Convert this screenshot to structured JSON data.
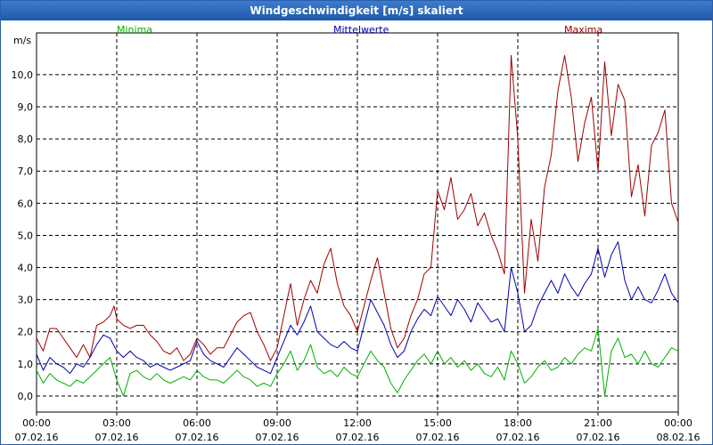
{
  "window": {
    "title": "Windgeschwindigkeit [m/s] skaliert"
  },
  "colors": {
    "min": "#00b000",
    "mean": "#0000b0",
    "max": "#a00000",
    "grid": "#000000"
  },
  "chart_data": {
    "type": "line",
    "title": "Windgeschwindigkeit [m/s] skaliert",
    "ylabel": "m/s",
    "xlabel": "",
    "ylim": [
      -0.5,
      11.3
    ],
    "yticks": [
      0,
      1,
      2,
      3,
      4,
      5,
      6,
      7,
      8,
      9,
      10
    ],
    "ytick_labels": [
      "0,0",
      "1,0",
      "2,0",
      "3,0",
      "4,0",
      "5,0",
      "6,0",
      "7,0",
      "8,0",
      "9,0",
      "10,0"
    ],
    "xlim_hours": [
      0,
      24
    ],
    "xticks_hours": [
      0,
      3,
      6,
      9,
      12,
      15,
      18,
      21,
      24
    ],
    "xtick_labels": [
      {
        "time": "00:00",
        "date": "07.02.16"
      },
      {
        "time": "03:00",
        "date": "07.02.16"
      },
      {
        "time": "06:00",
        "date": "07.02.16"
      },
      {
        "time": "09:00",
        "date": "07.02.16"
      },
      {
        "time": "12:00",
        "date": "07.02.16"
      },
      {
        "time": "15:00",
        "date": "07.02.16"
      },
      {
        "time": "18:00",
        "date": "07.02.16"
      },
      {
        "time": "21:00",
        "date": "07.02.16"
      },
      {
        "time": "00:00",
        "date": "08.02.16"
      }
    ],
    "grid": true,
    "legend": [
      "Minima",
      "Mittelwerte",
      "Maxima"
    ],
    "series": [
      {
        "name": "Maxima",
        "color": "#a00000",
        "points": [
          [
            0,
            1.8
          ],
          [
            0.25,
            1.4
          ],
          [
            0.5,
            2.1
          ],
          [
            0.75,
            2.1
          ],
          [
            1,
            1.8
          ],
          [
            1.25,
            1.5
          ],
          [
            1.5,
            1.2
          ],
          [
            1.75,
            1.6
          ],
          [
            2,
            1.2
          ],
          [
            2.25,
            2.2
          ],
          [
            2.5,
            2.3
          ],
          [
            2.75,
            2.5
          ],
          [
            2.9,
            2.8
          ],
          [
            3,
            2.4
          ],
          [
            3.25,
            2.2
          ],
          [
            3.5,
            2.1
          ],
          [
            3.75,
            2.2
          ],
          [
            4,
            2.2
          ],
          [
            4.25,
            1.9
          ],
          [
            4.5,
            1.7
          ],
          [
            4.75,
            1.4
          ],
          [
            5,
            1.3
          ],
          [
            5.25,
            1.5
          ],
          [
            5.5,
            1.1
          ],
          [
            5.75,
            1.3
          ],
          [
            6,
            1.8
          ],
          [
            6.25,
            1.6
          ],
          [
            6.5,
            1.3
          ],
          [
            6.75,
            1.5
          ],
          [
            7,
            1.5
          ],
          [
            7.25,
            1.9
          ],
          [
            7.5,
            2.3
          ],
          [
            7.75,
            2.5
          ],
          [
            8,
            2.6
          ],
          [
            8.25,
            2.0
          ],
          [
            8.5,
            1.6
          ],
          [
            8.75,
            1.1
          ],
          [
            9,
            1.5
          ],
          [
            9.25,
            2.5
          ],
          [
            9.5,
            3.5
          ],
          [
            9.75,
            2.2
          ],
          [
            10,
            3.0
          ],
          [
            10.25,
            3.6
          ],
          [
            10.5,
            3.2
          ],
          [
            10.75,
            4.1
          ],
          [
            11,
            4.6
          ],
          [
            11.25,
            3.5
          ],
          [
            11.5,
            2.8
          ],
          [
            11.75,
            2.5
          ],
          [
            12,
            2.0
          ],
          [
            12.25,
            2.8
          ],
          [
            12.5,
            3.6
          ],
          [
            12.75,
            4.3
          ],
          [
            13,
            3.2
          ],
          [
            13.25,
            2.1
          ],
          [
            13.5,
            1.5
          ],
          [
            13.75,
            1.8
          ],
          [
            14,
            2.5
          ],
          [
            14.25,
            3.0
          ],
          [
            14.5,
            3.8
          ],
          [
            14.75,
            4.0
          ],
          [
            15,
            6.4
          ],
          [
            15.25,
            5.8
          ],
          [
            15.5,
            6.8
          ],
          [
            15.75,
            5.5
          ],
          [
            16,
            5.8
          ],
          [
            16.25,
            6.3
          ],
          [
            16.5,
            5.3
          ],
          [
            16.75,
            5.7
          ],
          [
            17,
            5.0
          ],
          [
            17.25,
            4.5
          ],
          [
            17.5,
            3.8
          ],
          [
            17.75,
            10.6
          ],
          [
            18,
            8.0
          ],
          [
            18.25,
            3.2
          ],
          [
            18.5,
            5.5
          ],
          [
            18.75,
            4.2
          ],
          [
            19,
            6.5
          ],
          [
            19.25,
            7.5
          ],
          [
            19.5,
            9.5
          ],
          [
            19.75,
            10.6
          ],
          [
            20,
            9.3
          ],
          [
            20.25,
            7.3
          ],
          [
            20.5,
            8.5
          ],
          [
            20.75,
            9.3
          ],
          [
            21,
            7.0
          ],
          [
            21.25,
            10.4
          ],
          [
            21.5,
            8.1
          ],
          [
            21.75,
            9.7
          ],
          [
            22,
            9.2
          ],
          [
            22.25,
            6.2
          ],
          [
            22.5,
            7.2
          ],
          [
            22.75,
            5.6
          ],
          [
            23,
            7.8
          ],
          [
            23.25,
            8.2
          ],
          [
            23.5,
            8.9
          ],
          [
            23.75,
            6.0
          ],
          [
            24,
            5.4
          ]
        ]
      },
      {
        "name": "Mittelwerte",
        "color": "#0000b0",
        "points": [
          [
            0,
            1.3
          ],
          [
            0.25,
            0.8
          ],
          [
            0.5,
            1.2
          ],
          [
            0.75,
            1.0
          ],
          [
            1,
            0.9
          ],
          [
            1.25,
            0.7
          ],
          [
            1.5,
            1.0
          ],
          [
            1.75,
            0.9
          ],
          [
            2,
            1.2
          ],
          [
            2.25,
            1.6
          ],
          [
            2.5,
            1.9
          ],
          [
            2.75,
            1.8
          ],
          [
            3,
            1.4
          ],
          [
            3.25,
            1.2
          ],
          [
            3.5,
            1.4
          ],
          [
            3.75,
            1.2
          ],
          [
            4,
            1.1
          ],
          [
            4.25,
            0.9
          ],
          [
            4.5,
            1.0
          ],
          [
            4.75,
            0.9
          ],
          [
            5,
            0.8
          ],
          [
            5.25,
            0.9
          ],
          [
            5.5,
            1.0
          ],
          [
            5.75,
            1.1
          ],
          [
            6,
            1.7
          ],
          [
            6.25,
            1.3
          ],
          [
            6.5,
            1.1
          ],
          [
            6.75,
            1.0
          ],
          [
            7,
            0.9
          ],
          [
            7.25,
            1.2
          ],
          [
            7.5,
            1.5
          ],
          [
            7.75,
            1.3
          ],
          [
            8,
            1.1
          ],
          [
            8.25,
            0.9
          ],
          [
            8.5,
            0.8
          ],
          [
            8.75,
            0.7
          ],
          [
            9,
            1.2
          ],
          [
            9.25,
            1.7
          ],
          [
            9.5,
            2.2
          ],
          [
            9.75,
            1.9
          ],
          [
            10,
            2.3
          ],
          [
            10.25,
            2.8
          ],
          [
            10.5,
            2.0
          ],
          [
            10.75,
            1.8
          ],
          [
            11,
            1.6
          ],
          [
            11.25,
            1.5
          ],
          [
            11.5,
            1.7
          ],
          [
            11.75,
            1.5
          ],
          [
            12,
            1.4
          ],
          [
            12.25,
            2.2
          ],
          [
            12.5,
            3.0
          ],
          [
            12.75,
            2.6
          ],
          [
            13,
            2.2
          ],
          [
            13.25,
            1.6
          ],
          [
            13.5,
            1.2
          ],
          [
            13.75,
            1.4
          ],
          [
            14,
            2.0
          ],
          [
            14.25,
            2.4
          ],
          [
            14.5,
            2.7
          ],
          [
            14.75,
            2.5
          ],
          [
            15,
            3.1
          ],
          [
            15.25,
            2.8
          ],
          [
            15.5,
            2.5
          ],
          [
            15.75,
            3.0
          ],
          [
            16,
            2.7
          ],
          [
            16.25,
            2.3
          ],
          [
            16.5,
            2.9
          ],
          [
            16.75,
            2.6
          ],
          [
            17,
            2.3
          ],
          [
            17.25,
            2.4
          ],
          [
            17.5,
            2.0
          ],
          [
            17.75,
            4.0
          ],
          [
            18,
            3.2
          ],
          [
            18.25,
            2.0
          ],
          [
            18.5,
            2.2
          ],
          [
            18.75,
            2.8
          ],
          [
            19,
            3.2
          ],
          [
            19.25,
            3.6
          ],
          [
            19.5,
            3.2
          ],
          [
            19.75,
            3.8
          ],
          [
            20,
            3.4
          ],
          [
            20.25,
            3.1
          ],
          [
            20.5,
            3.5
          ],
          [
            20.75,
            3.8
          ],
          [
            21,
            4.6
          ],
          [
            21.25,
            3.7
          ],
          [
            21.5,
            4.4
          ],
          [
            21.75,
            4.8
          ],
          [
            22,
            3.6
          ],
          [
            22.25,
            3.0
          ],
          [
            22.5,
            3.4
          ],
          [
            22.75,
            3.0
          ],
          [
            23,
            2.9
          ],
          [
            23.25,
            3.3
          ],
          [
            23.5,
            3.8
          ],
          [
            23.75,
            3.2
          ],
          [
            24,
            2.9
          ]
        ]
      },
      {
        "name": "Minima",
        "color": "#00b000",
        "points": [
          [
            0,
            0.8
          ],
          [
            0.25,
            0.4
          ],
          [
            0.5,
            0.7
          ],
          [
            0.75,
            0.5
          ],
          [
            1,
            0.4
          ],
          [
            1.25,
            0.3
          ],
          [
            1.5,
            0.5
          ],
          [
            1.75,
            0.4
          ],
          [
            2,
            0.6
          ],
          [
            2.25,
            0.8
          ],
          [
            2.5,
            1.0
          ],
          [
            2.75,
            1.2
          ],
          [
            3,
            0.5
          ],
          [
            3.25,
            0.0
          ],
          [
            3.5,
            0.7
          ],
          [
            3.75,
            0.8
          ],
          [
            4,
            0.6
          ],
          [
            4.25,
            0.5
          ],
          [
            4.5,
            0.7
          ],
          [
            4.75,
            0.5
          ],
          [
            5,
            0.4
          ],
          [
            5.25,
            0.5
          ],
          [
            5.5,
            0.6
          ],
          [
            5.75,
            0.5
          ],
          [
            6,
            0.8
          ],
          [
            6.25,
            0.6
          ],
          [
            6.5,
            0.5
          ],
          [
            6.75,
            0.5
          ],
          [
            7,
            0.4
          ],
          [
            7.25,
            0.6
          ],
          [
            7.5,
            0.8
          ],
          [
            7.75,
            0.6
          ],
          [
            8,
            0.5
          ],
          [
            8.25,
            0.3
          ],
          [
            8.5,
            0.4
          ],
          [
            8.75,
            0.3
          ],
          [
            9,
            0.7
          ],
          [
            9.25,
            1.0
          ],
          [
            9.5,
            1.4
          ],
          [
            9.75,
            0.8
          ],
          [
            10,
            1.1
          ],
          [
            10.25,
            1.6
          ],
          [
            10.5,
            0.9
          ],
          [
            10.75,
            0.7
          ],
          [
            11,
            0.8
          ],
          [
            11.25,
            0.6
          ],
          [
            11.5,
            0.9
          ],
          [
            11.75,
            0.7
          ],
          [
            12,
            0.6
          ],
          [
            12.25,
            1.0
          ],
          [
            12.5,
            1.4
          ],
          [
            12.75,
            1.1
          ],
          [
            13,
            0.9
          ],
          [
            13.25,
            0.4
          ],
          [
            13.5,
            0.1
          ],
          [
            13.75,
            0.5
          ],
          [
            14,
            0.8
          ],
          [
            14.25,
            1.1
          ],
          [
            14.5,
            1.3
          ],
          [
            14.75,
            1.0
          ],
          [
            15,
            1.4
          ],
          [
            15.25,
            1.0
          ],
          [
            15.5,
            1.2
          ],
          [
            15.75,
            0.9
          ],
          [
            16,
            1.1
          ],
          [
            16.25,
            0.8
          ],
          [
            16.5,
            1.0
          ],
          [
            16.75,
            0.7
          ],
          [
            17,
            0.6
          ],
          [
            17.25,
            0.9
          ],
          [
            17.5,
            0.5
          ],
          [
            17.75,
            1.4
          ],
          [
            18,
            1.0
          ],
          [
            18.25,
            0.4
          ],
          [
            18.5,
            0.6
          ],
          [
            18.75,
            0.9
          ],
          [
            19,
            1.1
          ],
          [
            19.25,
            0.8
          ],
          [
            19.5,
            0.9
          ],
          [
            19.75,
            1.2
          ],
          [
            20,
            1.0
          ],
          [
            20.25,
            1.3
          ],
          [
            20.5,
            1.5
          ],
          [
            20.75,
            1.4
          ],
          [
            21,
            2.1
          ],
          [
            21.25,
            0.0
          ],
          [
            21.5,
            1.4
          ],
          [
            21.75,
            1.8
          ],
          [
            22,
            1.2
          ],
          [
            22.25,
            1.3
          ],
          [
            22.5,
            1.0
          ],
          [
            22.75,
            1.4
          ],
          [
            23,
            1.0
          ],
          [
            23.25,
            0.9
          ],
          [
            23.5,
            1.2
          ],
          [
            23.75,
            1.5
          ],
          [
            24,
            1.4
          ]
        ]
      }
    ]
  }
}
